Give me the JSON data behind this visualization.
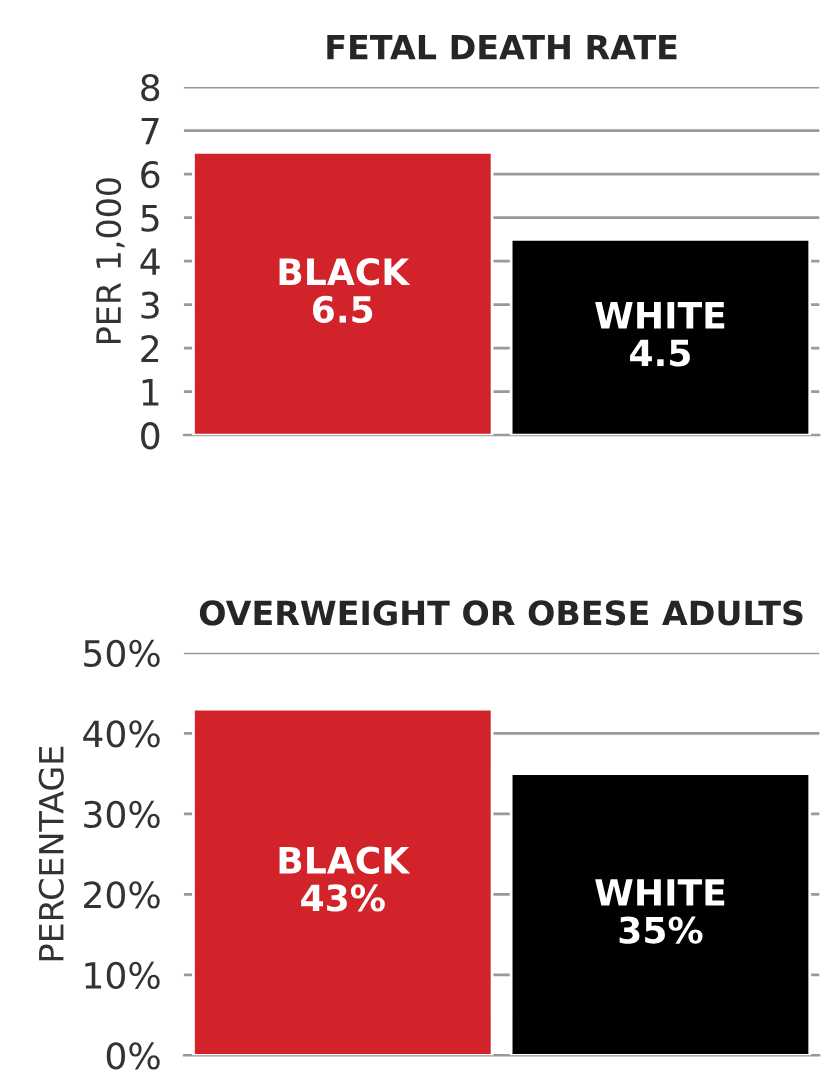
{
  "chart_data": [
    {
      "type": "bar",
      "title": "FETAL DEATH RATE",
      "ylabel": "PER 1,000",
      "categories": [
        "BLACK",
        "WHITE"
      ],
      "values": [
        6.5,
        4.5
      ],
      "colors": [
        "#d2232a",
        "#000000"
      ],
      "ylim": [
        0,
        8
      ],
      "yticks": [
        0,
        1,
        2,
        3,
        4,
        5,
        6,
        7,
        8
      ],
      "grid": "y",
      "tick_labels": "y",
      "data_labels": true
    },
    {
      "type": "bar",
      "title": "OVERWEIGHT OR OBESE ADULTS",
      "ylabel": "PERCENTAGE",
      "categories": [
        "BLACK",
        "WHITE"
      ],
      "values": [
        43,
        35
      ],
      "colors": [
        "#d2232a",
        "#000000"
      ],
      "ylim": [
        0,
        50
      ],
      "yticks": [
        {
          "value": 0,
          "label": "0%"
        },
        {
          "value": 10,
          "label": "10%"
        },
        {
          "value": 20,
          "label": "20%"
        },
        {
          "value": 30,
          "label": "30%"
        },
        {
          "value": 40,
          "label": "40%"
        },
        {
          "value": 50,
          "label": "50%"
        }
      ],
      "grid": "y",
      "tick_labels": "y",
      "value_labels": [
        "43%",
        "35%"
      ]
    }
  ]
}
